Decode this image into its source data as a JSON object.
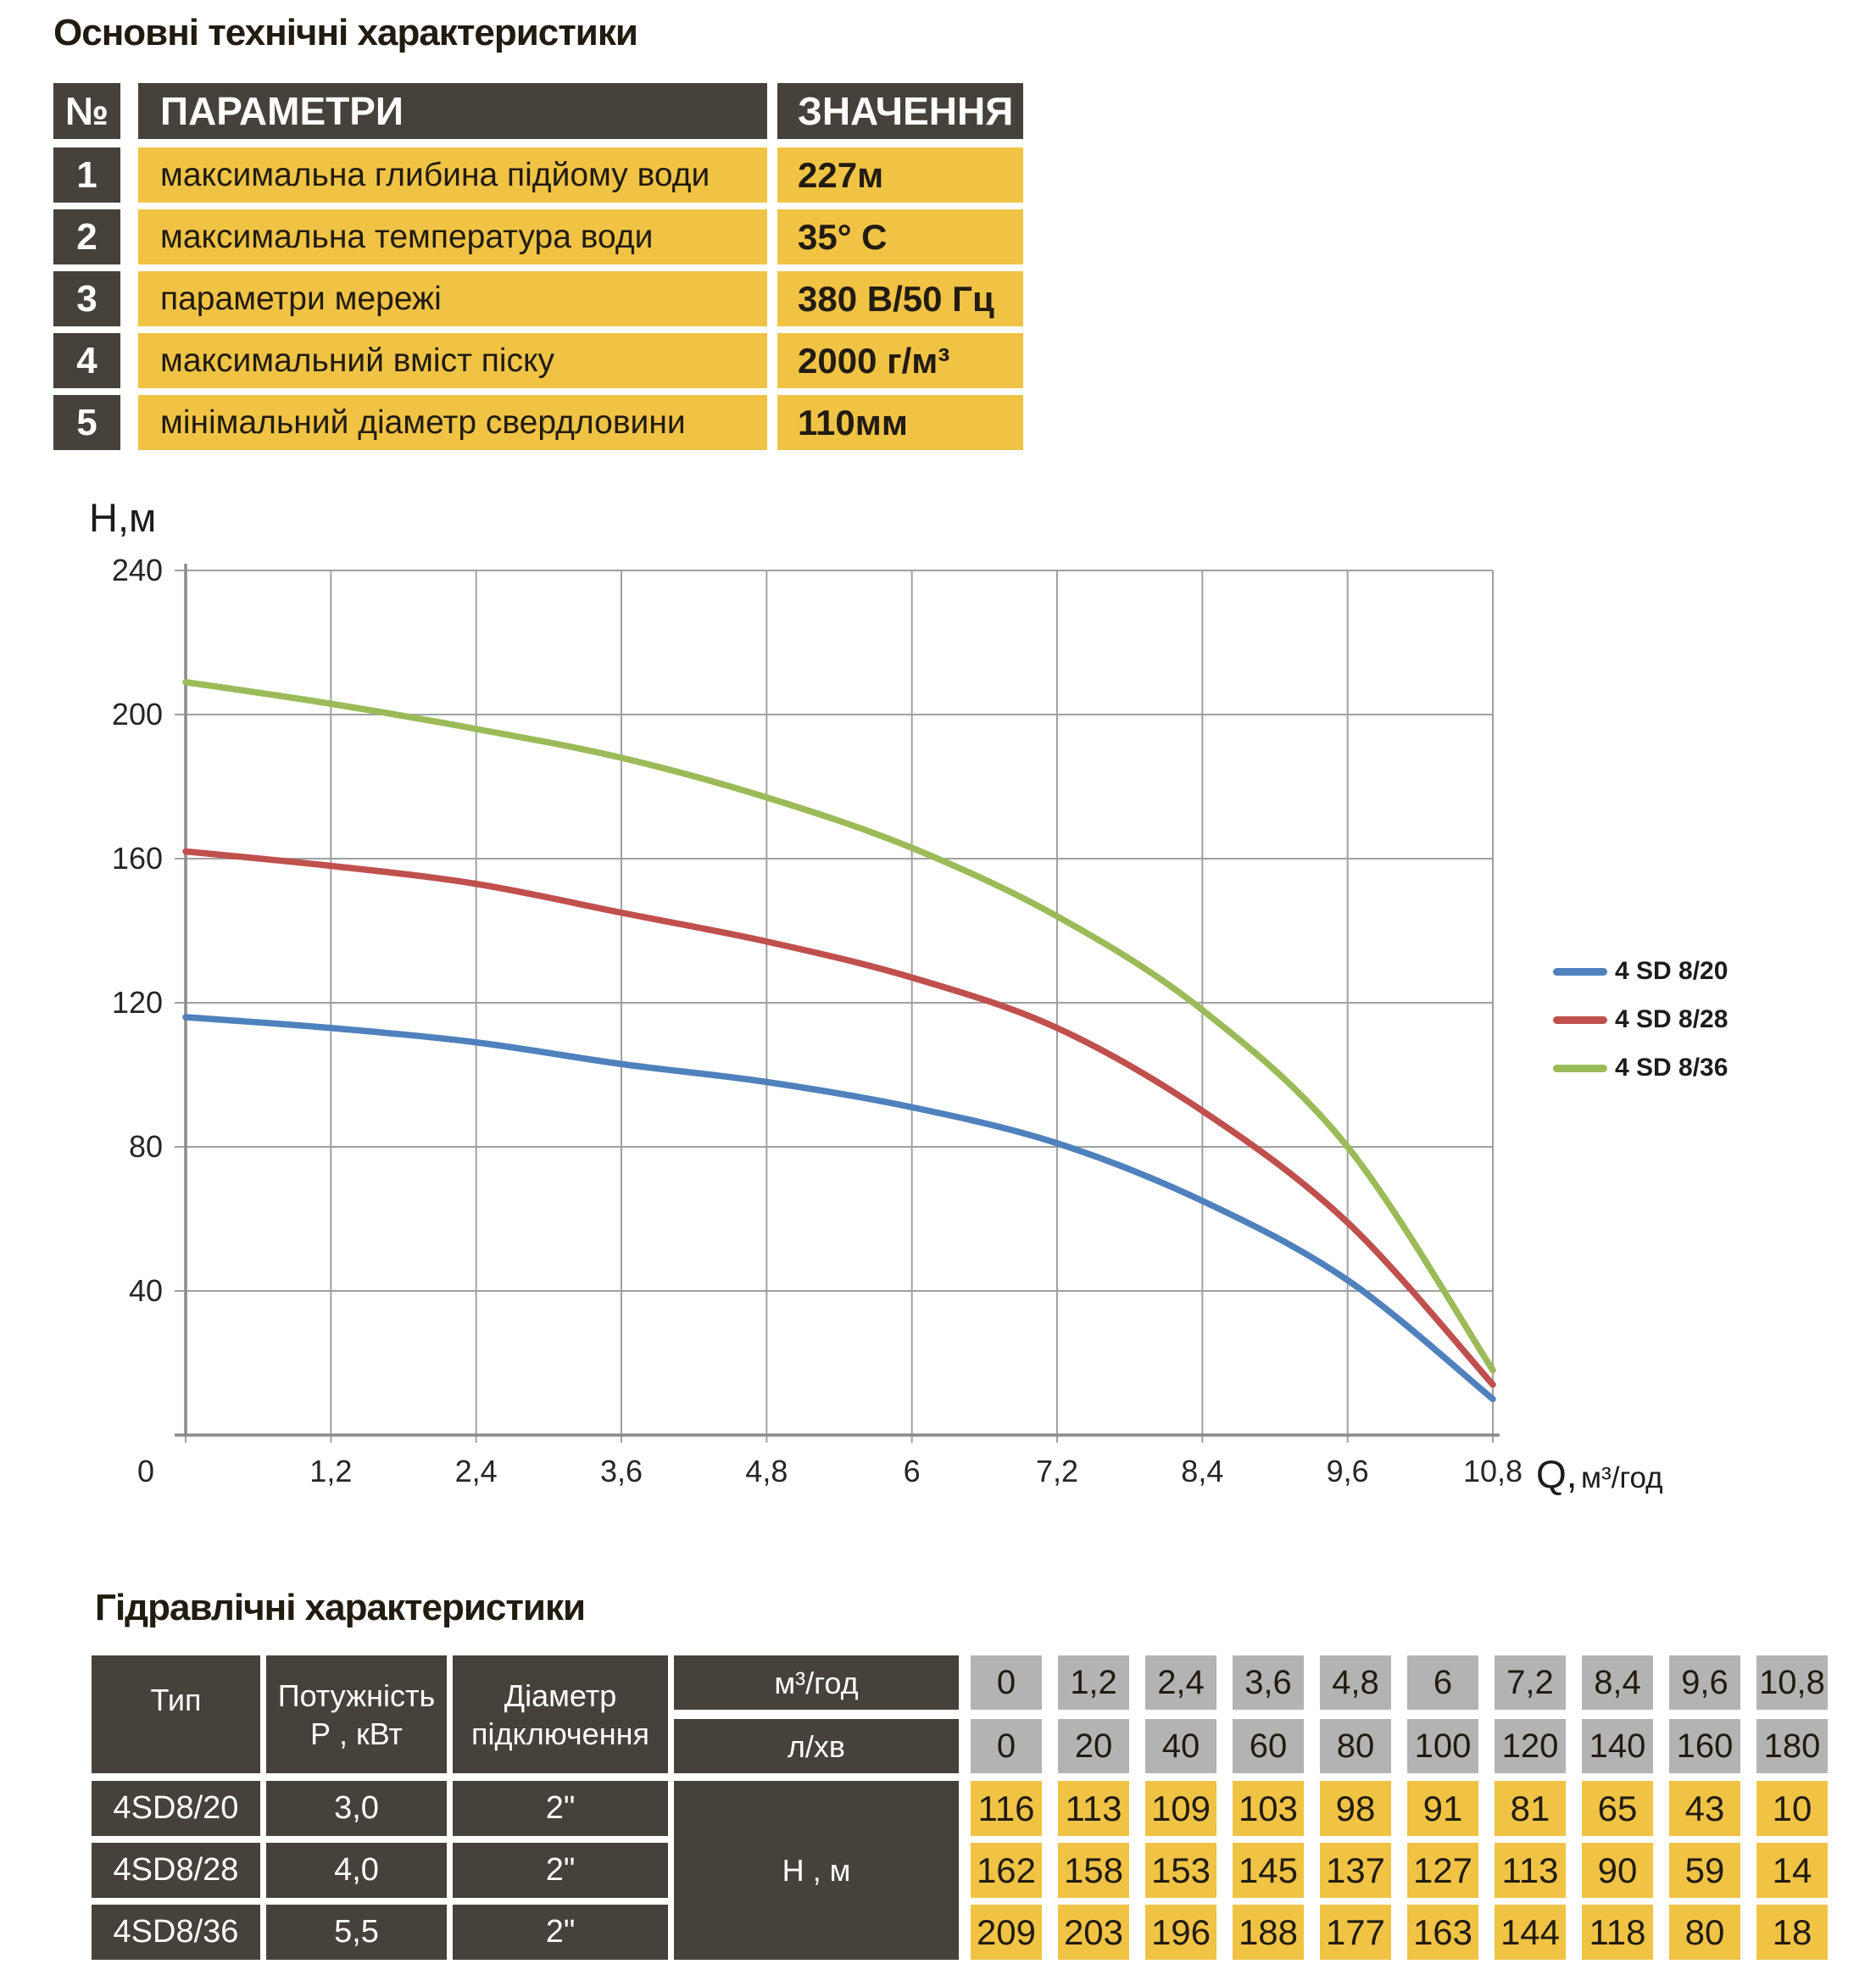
{
  "spec": {
    "title": "Основні технічні характеристики",
    "header": {
      "no": "№",
      "param": "ПАРАМЕТРИ",
      "value": "ЗНАЧЕННЯ"
    },
    "rows": [
      {
        "no": "1",
        "param": "максимальна глибина підйому води",
        "value": "227м"
      },
      {
        "no": "2",
        "param": "максимальна температура води",
        "value": "35° С"
      },
      {
        "no": "3",
        "param": "параметри мережі",
        "value": "380 В/50 Гц"
      },
      {
        "no": "4",
        "param": "максимальний вміст піску",
        "value": "2000 г/м³"
      },
      {
        "no": "5",
        "param": "мінімальний діаметр свердловини",
        "value": "110мм"
      }
    ]
  },
  "chart_data": {
    "type": "line",
    "title": "",
    "ylabel": "Н,м",
    "xlabel_q": "Q,",
    "xlabel_units": "м³/год",
    "x": [
      0,
      1.2,
      2.4,
      3.6,
      4.8,
      6,
      7.2,
      8.4,
      9.6,
      10.8
    ],
    "x_labels": [
      "0",
      "1,2",
      "2,4",
      "3,6",
      "4,8",
      "6",
      "7,2",
      "8,4",
      "9,6",
      "10,8"
    ],
    "y_ticks": [
      0,
      40,
      80,
      120,
      160,
      200,
      240
    ],
    "y_labels": [
      "0",
      "40",
      "80",
      "120",
      "160",
      "200",
      "240"
    ],
    "xlim": [
      0,
      10.8
    ],
    "ylim": [
      0,
      240
    ],
    "grid": true,
    "legend_position": "right",
    "series": [
      {
        "name": "4 SD 8/20",
        "color": "#4f81bd",
        "values": [
          116,
          113,
          109,
          103,
          98,
          91,
          81,
          65,
          43,
          10
        ]
      },
      {
        "name": "4 SD 8/28",
        "color": "#c0504d",
        "values": [
          162,
          158,
          153,
          145,
          137,
          127,
          113,
          90,
          59,
          14
        ]
      },
      {
        "name": "4 SD 8/36",
        "color": "#9bbb59",
        "values": [
          209,
          203,
          196,
          188,
          177,
          163,
          144,
          118,
          80,
          18
        ]
      }
    ]
  },
  "hydraulics": {
    "title": "Гідравлічні характеристики",
    "col_type": "Тип",
    "col_power_line1": "Потужність",
    "col_power_line2": "Р , кВт",
    "col_diam_line1": "Діаметр",
    "col_diam_line2": "підключення",
    "flow_m3_label": "м³/год",
    "flow_l_label": "л/хв",
    "head_label": "Н , м",
    "flow_m3": [
      "0",
      "1,2",
      "2,4",
      "3,6",
      "4,8",
      "6",
      "7,2",
      "8,4",
      "9,6",
      "10,8"
    ],
    "flow_l": [
      "0",
      "20",
      "40",
      "60",
      "80",
      "100",
      "120",
      "140",
      "160",
      "180"
    ],
    "rows": [
      {
        "type": "4SD8/20",
        "power": "3,0",
        "diameter": "2\"",
        "heads": [
          116,
          113,
          109,
          103,
          98,
          91,
          81,
          65,
          43,
          10
        ]
      },
      {
        "type": "4SD8/28",
        "power": "4,0",
        "diameter": "2\"",
        "heads": [
          162,
          158,
          153,
          145,
          137,
          127,
          113,
          90,
          59,
          14
        ]
      },
      {
        "type": "4SD8/36",
        "power": "5,5",
        "diameter": "2\"",
        "heads": [
          209,
          203,
          196,
          188,
          177,
          163,
          144,
          118,
          80,
          18
        ]
      }
    ]
  },
  "colors": {
    "dark_cell": "#46413a",
    "yellow_cell": "#f0c345",
    "gray_cell": "#b3b3b3",
    "grid_line": "#a0a0a0",
    "axis_line": "#8a8a8a",
    "text_dark": "#211b10"
  }
}
